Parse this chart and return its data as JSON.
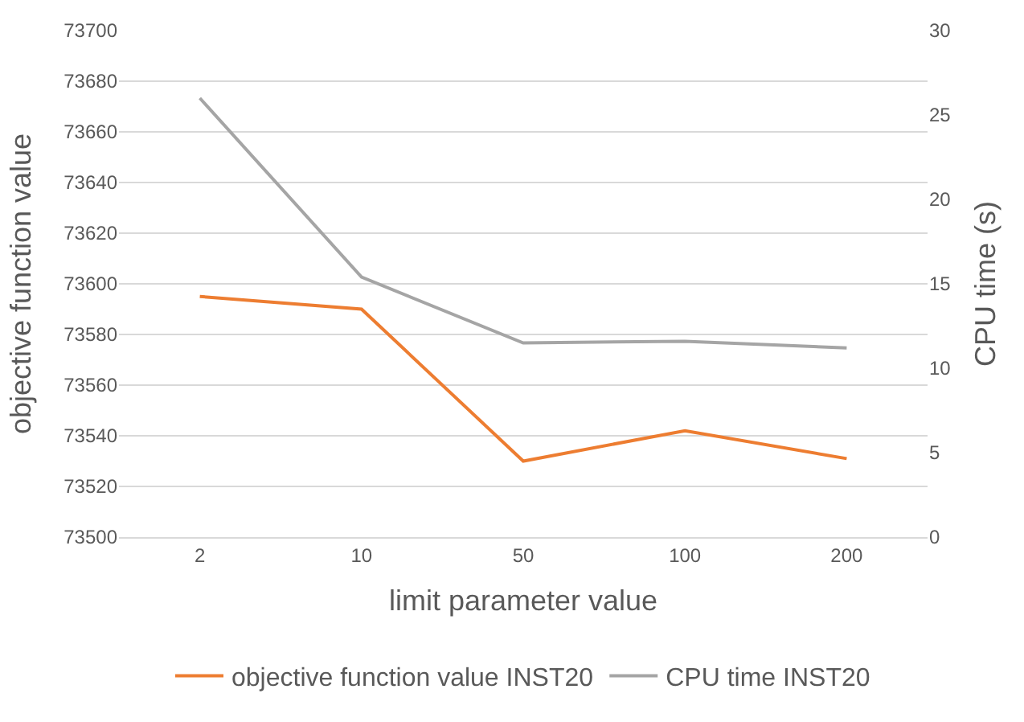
{
  "chart_data": {
    "type": "line",
    "categories": [
      "2",
      "10",
      "50",
      "100",
      "200"
    ],
    "xlabel": "limit parameter value",
    "ylabel": "objective function value",
    "y2label": "CPU time (s)",
    "series": [
      {
        "name": "objective function value INST20",
        "color": "#ed7d31",
        "values": [
          73595,
          73590,
          73530,
          73542,
          73531
        ]
      },
      {
        "name": "CPU time INST20",
        "color": "#a5a5a5",
        "axis": "y2",
        "values": [
          26.0,
          15.4,
          11.5,
          11.6,
          11.2
        ]
      }
    ],
    "ylim": [
      73500,
      73700
    ],
    "yticks": [
      73500,
      73520,
      73540,
      73560,
      73580,
      73600,
      73620,
      73640,
      73660,
      73680,
      73700
    ],
    "y2lim": [
      0,
      30
    ],
    "y2ticks": [
      0,
      5,
      10,
      15,
      20,
      25,
      30
    ],
    "grid": "y",
    "legend": "bottom",
    "marker": "none",
    "line_style": "solid"
  }
}
